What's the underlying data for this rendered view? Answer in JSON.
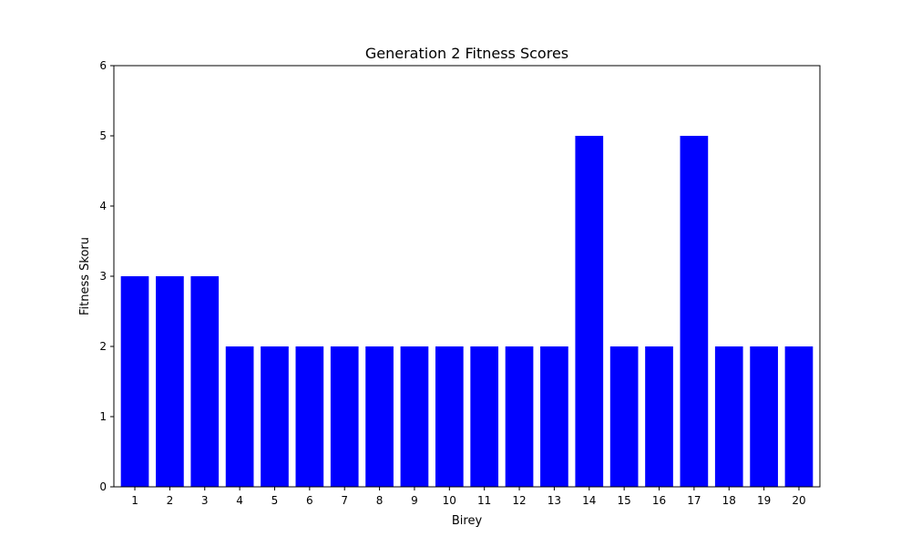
{
  "chart_data": {
    "type": "bar",
    "title": "Generation 2 Fitness Scores",
    "xlabel": "Birey",
    "ylabel": "Fitness Skoru",
    "categories": [
      "1",
      "2",
      "3",
      "4",
      "5",
      "6",
      "7",
      "8",
      "9",
      "10",
      "11",
      "12",
      "13",
      "14",
      "15",
      "16",
      "17",
      "18",
      "19",
      "20"
    ],
    "values": [
      3,
      3,
      3,
      2,
      2,
      2,
      2,
      2,
      2,
      2,
      2,
      2,
      2,
      5,
      2,
      2,
      5,
      2,
      2,
      2
    ],
    "ylim": [
      0,
      6
    ],
    "yticks": [
      0,
      1,
      2,
      3,
      4,
      5,
      6
    ],
    "bar_color": "#0000ff",
    "grid": false,
    "legend": "none"
  }
}
